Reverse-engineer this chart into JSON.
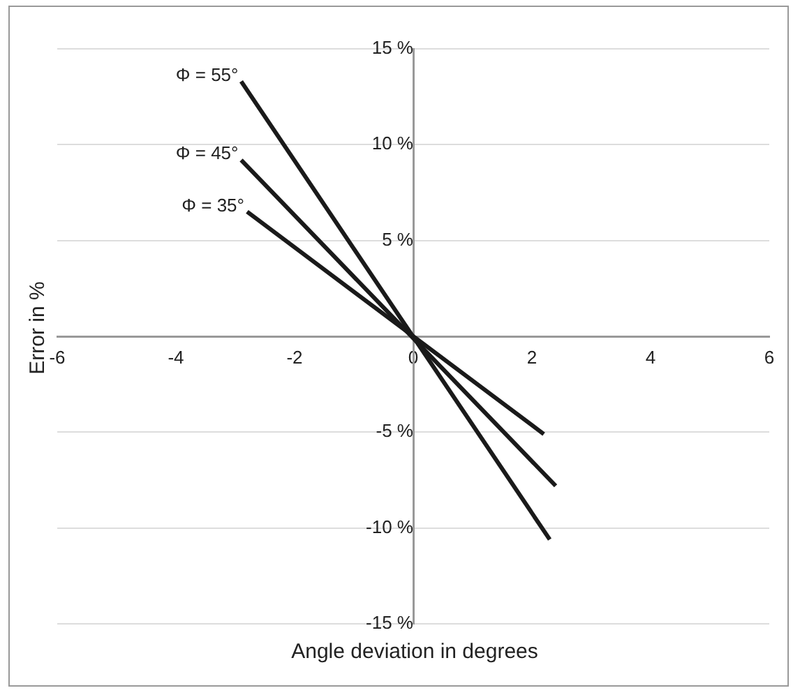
{
  "chart_data": {
    "type": "line",
    "xlabel": "Angle deviation in degrees",
    "ylabel": "Error in %",
    "xlim": [
      -6,
      6
    ],
    "xticks": [
      -6,
      -4,
      -2,
      0,
      2,
      4,
      6
    ],
    "ylim": [
      -15,
      15
    ],
    "yticks": [
      {
        "value": -15,
        "label": "-15 %"
      },
      {
        "value": -10,
        "label": "-10 %"
      },
      {
        "value": -5,
        "label": "-5 %"
      },
      {
        "value": 0,
        "label": null
      },
      {
        "value": 5,
        "label": "5 %"
      },
      {
        "value": 10,
        "label": "10 %"
      },
      {
        "value": 15,
        "label": "15 %"
      }
    ],
    "grid": "y",
    "legend": false,
    "marker": "none",
    "line_style": "solid",
    "series": [
      {
        "name": "Φ = 55°",
        "color": "#1a1a1a",
        "x": [
          -2.9,
          2.3
        ],
        "values": [
          13.3,
          -10.6
        ]
      },
      {
        "name": "Φ = 45°",
        "color": "#1a1a1a",
        "x": [
          -2.9,
          2.4
        ],
        "values": [
          9.2,
          -7.8
        ]
      },
      {
        "name": "Φ = 35°",
        "color": "#1a1a1a",
        "x": [
          -2.8,
          2.2
        ],
        "values": [
          6.5,
          -5.1
        ]
      }
    ]
  }
}
